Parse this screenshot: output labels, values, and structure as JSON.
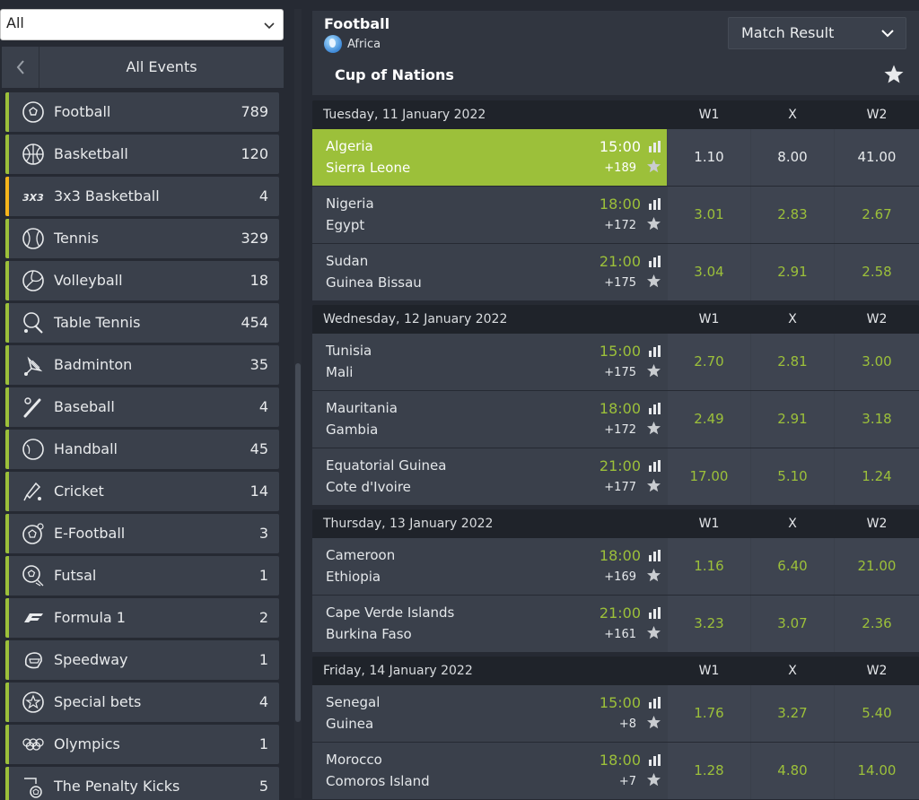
{
  "filter": {
    "value": "All"
  },
  "sidebar": {
    "header_label": "All Events",
    "items": [
      {
        "label": "Football",
        "count": "789",
        "icon": "football-icon"
      },
      {
        "label": "Basketball",
        "count": "120",
        "icon": "basketball-icon"
      },
      {
        "label": "3x3 Basketball",
        "count": "4",
        "icon": "3x3-basketball-icon",
        "accent": "#f5b41b"
      },
      {
        "label": "Tennis",
        "count": "329",
        "icon": "tennis-icon"
      },
      {
        "label": "Volleyball",
        "count": "18",
        "icon": "volleyball-icon"
      },
      {
        "label": "Table Tennis",
        "count": "454",
        "icon": "table-tennis-icon"
      },
      {
        "label": "Badminton",
        "count": "35",
        "icon": "badminton-icon"
      },
      {
        "label": "Baseball",
        "count": "4",
        "icon": "baseball-icon"
      },
      {
        "label": "Handball",
        "count": "45",
        "icon": "handball-icon"
      },
      {
        "label": "Cricket",
        "count": "14",
        "icon": "cricket-icon"
      },
      {
        "label": "E-Football",
        "count": "3",
        "icon": "e-football-icon"
      },
      {
        "label": "Futsal",
        "count": "1",
        "icon": "futsal-icon"
      },
      {
        "label": "Formula 1",
        "count": "2",
        "icon": "formula1-icon"
      },
      {
        "label": "Speedway",
        "count": "1",
        "icon": "speedway-icon"
      },
      {
        "label": "Special bets",
        "count": "4",
        "icon": "special-bets-icon"
      },
      {
        "label": "Olympics",
        "count": "1",
        "icon": "olympics-icon"
      },
      {
        "label": "The Penalty Kicks",
        "count": "5",
        "icon": "penalty-kicks-icon"
      }
    ]
  },
  "main": {
    "sport": "Football",
    "region": "Africa",
    "market": "Match Result",
    "league": "Cup of Nations",
    "columns": [
      "W1",
      "X",
      "W2"
    ],
    "days": [
      {
        "date": "Tuesday, 11 January 2022",
        "matches": [
          {
            "team1": "Algeria",
            "team2": "Sierra Leone",
            "time": "15:00",
            "more": "+189",
            "w1": "1.10",
            "x": "8.00",
            "w2": "41.00",
            "active": true
          },
          {
            "team1": "Nigeria",
            "team2": "Egypt",
            "time": "18:00",
            "more": "+172",
            "w1": "3.01",
            "x": "2.83",
            "w2": "2.67"
          },
          {
            "team1": "Sudan",
            "team2": "Guinea Bissau",
            "time": "21:00",
            "more": "+175",
            "w1": "3.04",
            "x": "2.91",
            "w2": "2.58"
          }
        ]
      },
      {
        "date": "Wednesday, 12 January 2022",
        "matches": [
          {
            "team1": "Tunisia",
            "team2": "Mali",
            "time": "15:00",
            "more": "+175",
            "w1": "2.70",
            "x": "2.81",
            "w2": "3.00"
          },
          {
            "team1": "Mauritania",
            "team2": "Gambia",
            "time": "18:00",
            "more": "+172",
            "w1": "2.49",
            "x": "2.91",
            "w2": "3.18"
          },
          {
            "team1": "Equatorial Guinea",
            "team2": "Cote d'Ivoire",
            "time": "21:00",
            "more": "+177",
            "w1": "17.00",
            "x": "5.10",
            "w2": "1.24"
          }
        ]
      },
      {
        "date": "Thursday, 13 January 2022",
        "matches": [
          {
            "team1": "Cameroon",
            "team2": "Ethiopia",
            "time": "18:00",
            "more": "+169",
            "w1": "1.16",
            "x": "6.40",
            "w2": "21.00"
          },
          {
            "team1": "Cape Verde Islands",
            "team2": "Burkina Faso",
            "time": "21:00",
            "more": "+161",
            "w1": "3.23",
            "x": "3.07",
            "w2": "2.36"
          }
        ]
      },
      {
        "date": "Friday, 14 January 2022",
        "matches": [
          {
            "team1": "Senegal",
            "team2": "Guinea",
            "time": "15:00",
            "more": "+8",
            "w1": "1.76",
            "x": "3.27",
            "w2": "5.40"
          },
          {
            "team1": "Morocco",
            "team2": "Comoros Island",
            "time": "18:00",
            "more": "+7",
            "w1": "1.28",
            "x": "4.80",
            "w2": "14.00"
          }
        ]
      }
    ]
  },
  "colors": {
    "accent": "#9cc03a",
    "warning": "#f5b41b",
    "panel": "#3a404b",
    "background": "#262a33"
  }
}
